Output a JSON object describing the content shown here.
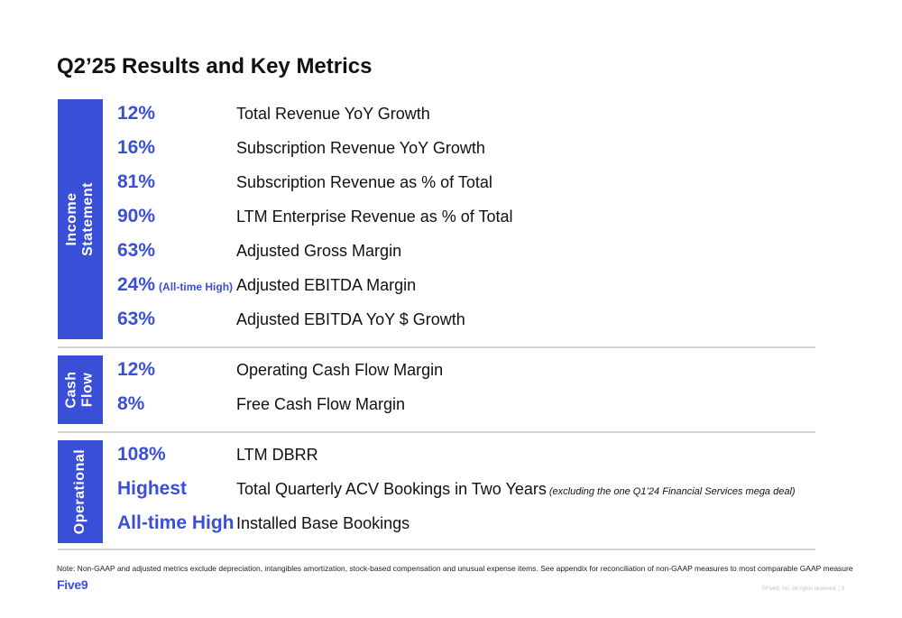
{
  "title": "Q2’25 Results and Key Metrics",
  "sections": [
    {
      "label_lines": [
        "Income",
        "Statement"
      ],
      "rows": [
        {
          "metric": "12%",
          "description": "Total Revenue YoY Growth"
        },
        {
          "metric": "16%",
          "description": "Subscription Revenue YoY Growth"
        },
        {
          "metric": "81%",
          "description": "Subscription Revenue as % of Total"
        },
        {
          "metric": "90%",
          "description": "LTM Enterprise Revenue as % of Total"
        },
        {
          "metric": "63%",
          "description": "Adjusted Gross Margin"
        },
        {
          "metric": "24%",
          "metric_note": "(All-time High)",
          "description": "Adjusted EBITDA Margin"
        },
        {
          "metric": "63%",
          "description": "Adjusted EBITDA YoY $ Growth"
        }
      ]
    },
    {
      "label_lines": [
        "Cash",
        "Flow"
      ],
      "rows": [
        {
          "metric": "12%",
          "description": "Operating Cash Flow Margin"
        },
        {
          "metric": "8%",
          "description": "Free Cash Flow Margin"
        }
      ]
    },
    {
      "label_lines": [
        "Operational"
      ],
      "rows": [
        {
          "metric": "108%",
          "description": "LTM DBRR"
        },
        {
          "metric": "Highest",
          "description": "Total Quarterly ACV Bookings in Two Years",
          "description_note": "(excluding the one Q1’24 Financial Services mega deal)"
        },
        {
          "metric": "All-time High",
          "description": "Installed Base Bookings"
        }
      ]
    }
  ],
  "footnote": "Note: Non-GAAP and adjusted metrics exclude depreciation, intangibles amortization, stock-based compensation and unusual expense items. See appendix for reconciliation of non-GAAP measures to most comparable GAAP measure",
  "logo_text": "Five9",
  "copyright": "©Five9, Inc. All rights reserved. | 3",
  "colors": {
    "accent": "#3a4fd8",
    "divider": "#d6d6d6"
  }
}
